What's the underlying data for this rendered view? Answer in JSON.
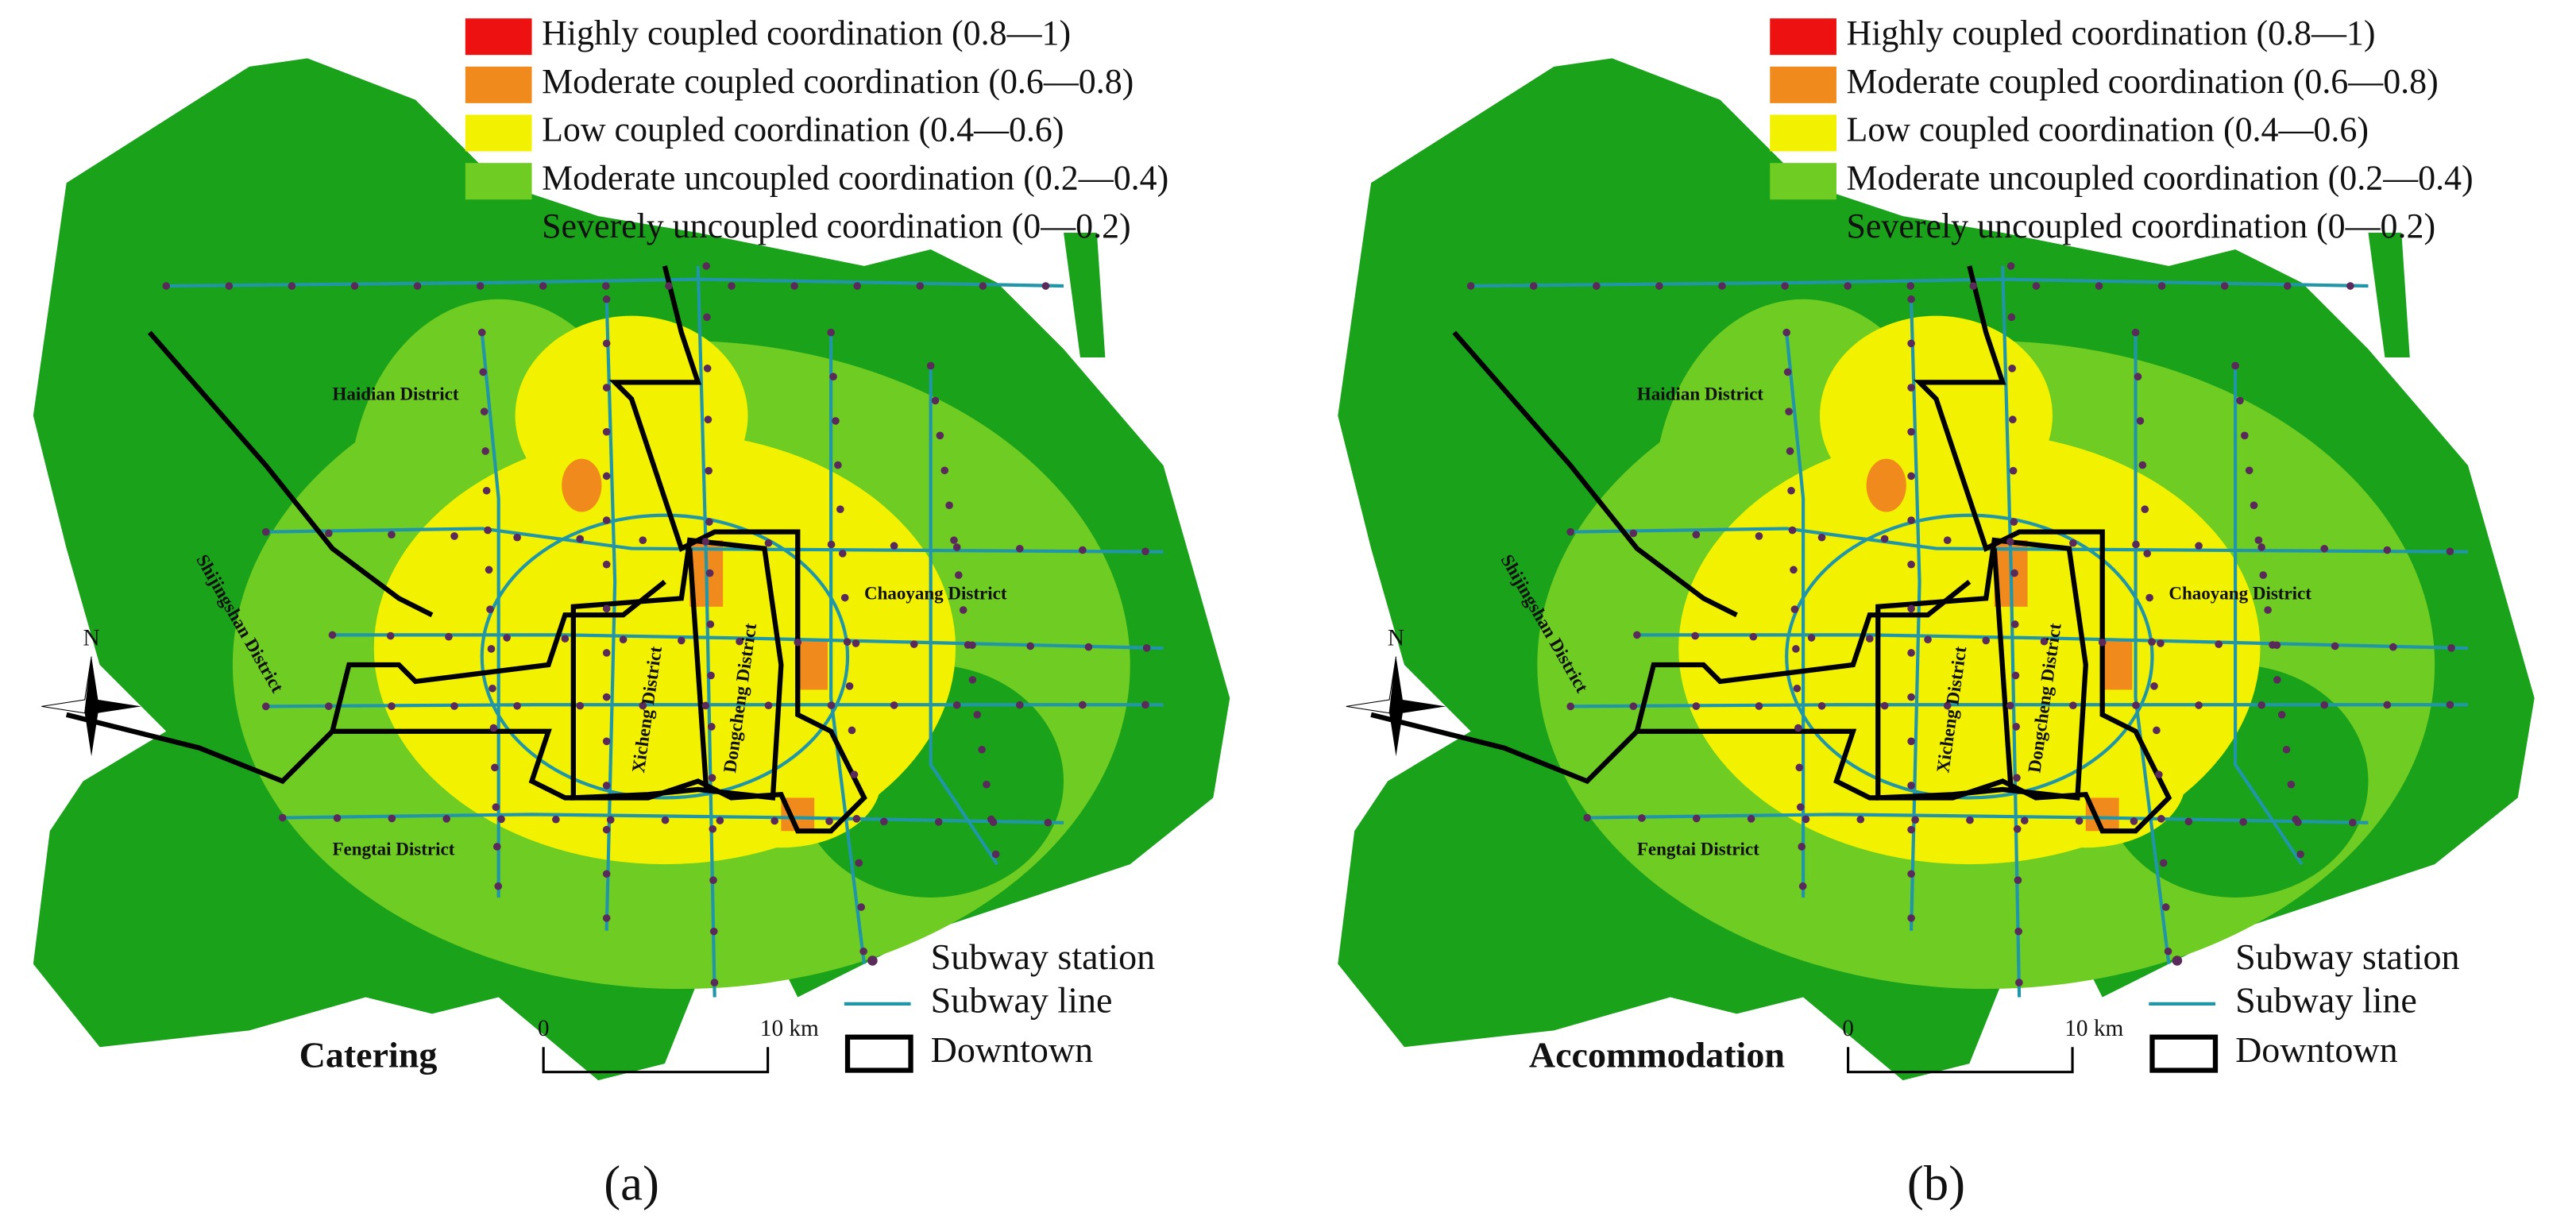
{
  "panels": [
    {
      "title": "Catering",
      "caption": "(a)",
      "legend": [
        "Highly coupled coordination (0.8—1)",
        "Moderate coupled coordination (0.6—0.8)",
        "Low coupled coordination (0.4—0.6)",
        "Moderate uncoupled coordination (0.2—0.4)",
        "Severely uncoupled coordination (0—0.2)"
      ],
      "districts": {
        "haidian": "Haidian District",
        "shijingshan": "Shijingshan District",
        "chaoyang": "Chaoyang District",
        "xicheng": "Xicheng District",
        "dongcheng": "Dongcheng District",
        "fengtai": "Fengtai District"
      },
      "compass": "N",
      "scale": {
        "start": "0",
        "end": "10 km"
      },
      "symbols": [
        "Subway station",
        "Subway line",
        "Downtown"
      ]
    },
    {
      "title": "Accommodation",
      "caption": "(b)",
      "legend": [
        "Highly coupled coordination (0.8—1)",
        "Moderate coupled coordination (0.6—0.8)",
        "Low coupled coordination (0.4—0.6)",
        "Moderate uncoupled coordination (0.2—0.4)",
        "Severely uncoupled coordination (0—0.2)"
      ],
      "districts": {
        "haidian": "Haidian District",
        "shijingshan": "Shijingshan District",
        "chaoyang": "Chaoyang District",
        "xicheng": "Xicheng District",
        "dongcheng": "Dongcheng District",
        "fengtai": "Fengtai District"
      },
      "compass": "N",
      "scale": {
        "start": "0",
        "end": "10 km"
      },
      "symbols": [
        "Subway station",
        "Subway line",
        "Downtown"
      ]
    }
  ]
}
